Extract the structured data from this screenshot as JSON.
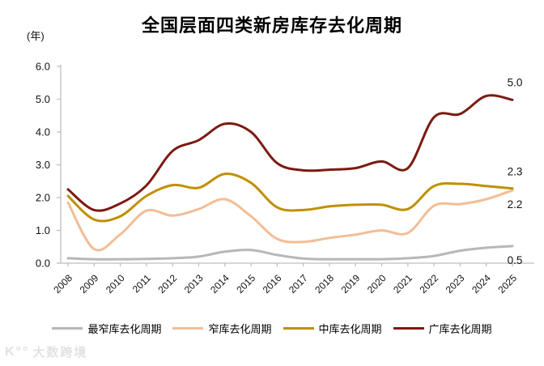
{
  "title": "全国层面四类新房库存去化周期",
  "watermark": {
    "logo": "K°°",
    "text": "大数跨境"
  },
  "chart_data": {
    "type": "line",
    "title": "全国层面四类新房库存去化周期",
    "ylabel": "(年)",
    "xlabel": "",
    "grid": false,
    "legend_position": "bottom",
    "ylim": [
      0.0,
      6.0
    ],
    "y_ticks": [
      "6.0",
      "5.0",
      "4.0",
      "3.0",
      "2.0",
      "1.0",
      "0.0"
    ],
    "x": [
      "2008",
      "2009",
      "2010",
      "2011",
      "2012",
      "2013",
      "2014",
      "2015",
      "2016",
      "2017",
      "2018",
      "2019",
      "2020",
      "2021",
      "2022",
      "2023",
      "2024",
      "2025"
    ],
    "series": [
      {
        "name": "最窄库去化周期",
        "color": "#b7b7b7",
        "end_label": "0.5",
        "values": [
          0.15,
          0.12,
          0.12,
          0.13,
          0.15,
          0.2,
          0.35,
          0.4,
          0.25,
          0.14,
          0.12,
          0.12,
          0.12,
          0.15,
          0.22,
          0.38,
          0.47,
          0.52
        ]
      },
      {
        "name": "窄库去化周期",
        "color": "#f3bd95",
        "end_label": "2.2",
        "values": [
          1.85,
          0.43,
          0.88,
          1.6,
          1.45,
          1.65,
          1.95,
          1.43,
          0.74,
          0.65,
          0.77,
          0.87,
          1.0,
          0.92,
          1.75,
          1.8,
          1.95,
          2.22
        ]
      },
      {
        "name": "中库去化周期",
        "color": "#bf9000",
        "end_label": "2.3",
        "values": [
          2.05,
          1.33,
          1.43,
          2.05,
          2.38,
          2.3,
          2.72,
          2.45,
          1.7,
          1.62,
          1.73,
          1.78,
          1.78,
          1.65,
          2.35,
          2.42,
          2.35,
          2.28
        ]
      },
      {
        "name": "广库去化周期",
        "color": "#7c1a11",
        "end_label": "5.0",
        "values": [
          2.25,
          1.62,
          1.82,
          2.37,
          3.42,
          3.75,
          4.25,
          4.0,
          3.05,
          2.83,
          2.85,
          2.9,
          3.1,
          2.9,
          4.45,
          4.55,
          5.1,
          4.98
        ]
      }
    ]
  }
}
